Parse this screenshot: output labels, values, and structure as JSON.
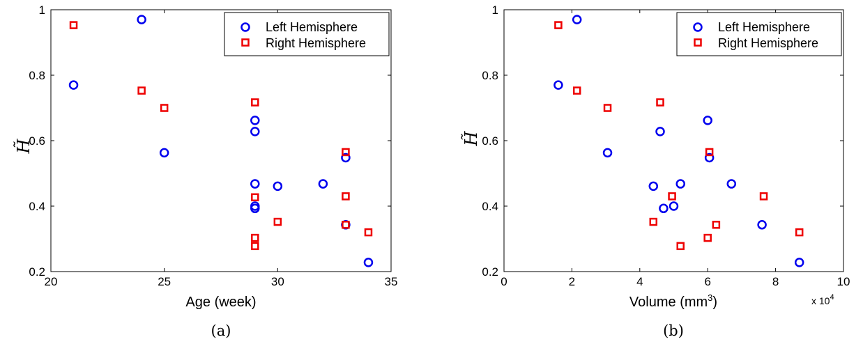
{
  "chart_data": [
    {
      "type": "scatter",
      "caption": "(a)",
      "xlabel": "Age (week)",
      "ylabel": "H̃",
      "xlim": [
        20,
        35
      ],
      "ylim": [
        0.2,
        1.0
      ],
      "xticks": [
        "20",
        "25",
        "30",
        "35"
      ],
      "yticks": [
        "0.2",
        "0.4",
        "0.6",
        "0.8",
        "1"
      ],
      "legend_position": "top-right",
      "series": [
        {
          "name": "Left Hemisphere",
          "marker": "circle",
          "color": "#0000ee",
          "points": [
            [
              21,
              0.77
            ],
            [
              24,
              0.97
            ],
            [
              25,
              0.563
            ],
            [
              29,
              0.662
            ],
            [
              29,
              0.628
            ],
            [
              29,
              0.468
            ],
            [
              29,
              0.4
            ],
            [
              29,
              0.393
            ],
            [
              30,
              0.461
            ],
            [
              32,
              0.468
            ],
            [
              33,
              0.548
            ],
            [
              33,
              0.343
            ],
            [
              34,
              0.228
            ]
          ]
        },
        {
          "name": "Right Hemisphere",
          "marker": "square",
          "color": "#ee0000",
          "points": [
            [
              21,
              0.953
            ],
            [
              24,
              0.753
            ],
            [
              25,
              0.7
            ],
            [
              29,
              0.717
            ],
            [
              29,
              0.427
            ],
            [
              29,
              0.303
            ],
            [
              29,
              0.278
            ],
            [
              30,
              0.352
            ],
            [
              33,
              0.565
            ],
            [
              33,
              0.43
            ],
            [
              33,
              0.343
            ],
            [
              34,
              0.32
            ]
          ]
        }
      ]
    },
    {
      "type": "scatter",
      "caption": "(b)",
      "xlabel_main": "Volume (mm",
      "xlabel_sup": "3",
      "xlabel_close": ")",
      "ylabel": "H̃",
      "x_multiplier": "x 10",
      "x_multiplier_exp": "4",
      "xlim": [
        0,
        10
      ],
      "ylim": [
        0.2,
        1.0
      ],
      "xticks": [
        "0",
        "2",
        "4",
        "6",
        "8",
        "10"
      ],
      "yticks": [
        "0.2",
        "0.4",
        "0.6",
        "0.8",
        "1"
      ],
      "legend_position": "top-right",
      "series": [
        {
          "name": "Left Hemisphere",
          "marker": "circle",
          "color": "#0000ee",
          "points": [
            [
              1.6,
              0.77
            ],
            [
              2.15,
              0.97
            ],
            [
              3.05,
              0.563
            ],
            [
              4.6,
              0.628
            ],
            [
              6.0,
              0.662
            ],
            [
              6.05,
              0.548
            ],
            [
              4.4,
              0.461
            ],
            [
              5.2,
              0.468
            ],
            [
              6.7,
              0.468
            ],
            [
              4.7,
              0.393
            ],
            [
              5.0,
              0.4
            ],
            [
              7.6,
              0.343
            ],
            [
              8.7,
              0.228
            ]
          ]
        },
        {
          "name": "Right Hemisphere",
          "marker": "square",
          "color": "#ee0000",
          "points": [
            [
              1.6,
              0.953
            ],
            [
              2.15,
              0.753
            ],
            [
              3.05,
              0.7
            ],
            [
              4.6,
              0.717
            ],
            [
              6.05,
              0.565
            ],
            [
              4.95,
              0.43
            ],
            [
              7.65,
              0.43
            ],
            [
              4.4,
              0.352
            ],
            [
              6.25,
              0.343
            ],
            [
              5.2,
              0.278
            ],
            [
              6.0,
              0.303
            ],
            [
              8.7,
              0.32
            ]
          ]
        }
      ]
    }
  ]
}
